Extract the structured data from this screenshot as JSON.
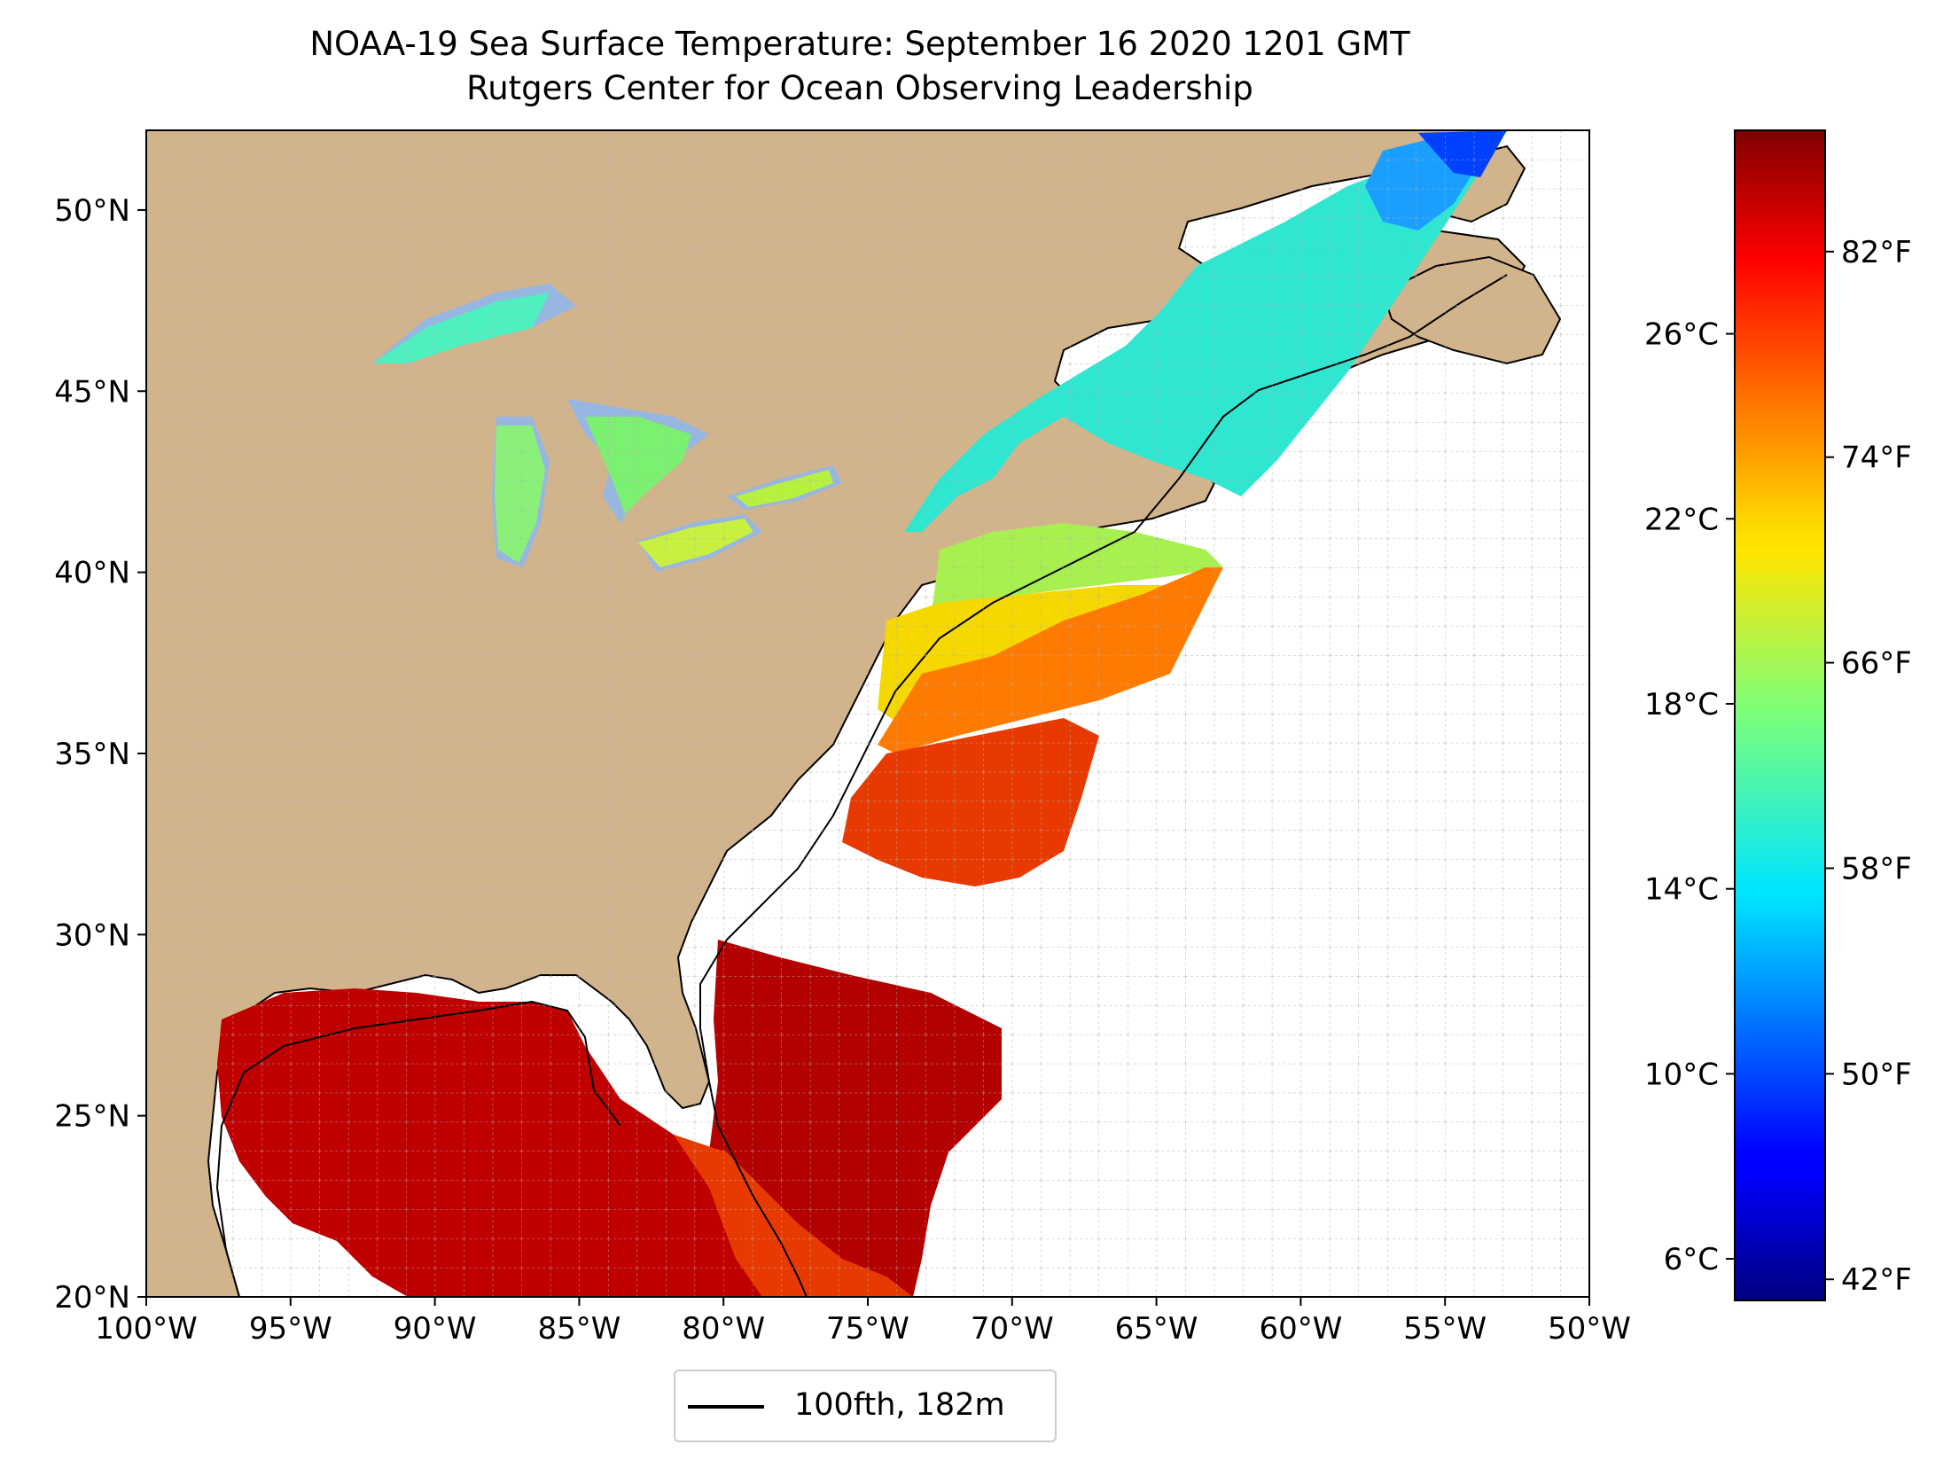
{
  "title": "NOAA-19 Sea Surface Temperature: September 16 2020 1201 GMT",
  "subtitle": "Rutgers Center for Ocean Observing Leadership",
  "map": {
    "extent": {
      "lon_min": -100,
      "lon_max": -50,
      "lat_min": 20,
      "lat_max": 52.2
    },
    "lon_ticks": [
      {
        "value": -100,
        "label": "100°W"
      },
      {
        "value": -95,
        "label": "95°W"
      },
      {
        "value": -90,
        "label": "90°W"
      },
      {
        "value": -85,
        "label": "85°W"
      },
      {
        "value": -80,
        "label": "80°W"
      },
      {
        "value": -75,
        "label": "75°W"
      },
      {
        "value": -70,
        "label": "70°W"
      },
      {
        "value": -65,
        "label": "65°W"
      },
      {
        "value": -60,
        "label": "60°W"
      },
      {
        "value": -55,
        "label": "55°W"
      },
      {
        "value": -50,
        "label": "50°W"
      }
    ],
    "lat_ticks": [
      {
        "value": 20,
        "label": "20°N"
      },
      {
        "value": 25,
        "label": "25°N"
      },
      {
        "value": 30,
        "label": "30°N"
      },
      {
        "value": 35,
        "label": "35°N"
      },
      {
        "value": 40,
        "label": "40°N"
      },
      {
        "value": 45,
        "label": "45°N"
      },
      {
        "value": 50,
        "label": "50°N"
      }
    ],
    "gridlines": true,
    "colors": {
      "land": "#d2b48c",
      "lakes": "#97b6e1",
      "ocean_nodata": "#ffffff",
      "coast": "#000000"
    }
  },
  "colorbar": {
    "range_c": [
      5.1,
      30.4
    ],
    "colormap": "jet",
    "celsius_ticks": [
      {
        "value": 6,
        "label": "6°C"
      },
      {
        "value": 10,
        "label": "10°C"
      },
      {
        "value": 14,
        "label": "14°C"
      },
      {
        "value": 18,
        "label": "18°C"
      },
      {
        "value": 22,
        "label": "22°C"
      },
      {
        "value": 26,
        "label": "26°C"
      }
    ],
    "fahrenheit_ticks": [
      {
        "value": 42,
        "label": "42°F"
      },
      {
        "value": 50,
        "label": "50°F"
      },
      {
        "value": 58,
        "label": "58°F"
      },
      {
        "value": 66,
        "label": "66°F"
      },
      {
        "value": 74,
        "label": "74°F"
      },
      {
        "value": 82,
        "label": "82°F"
      }
    ]
  },
  "legend": {
    "label": "100fth, 182m",
    "line_color": "#000000"
  }
}
